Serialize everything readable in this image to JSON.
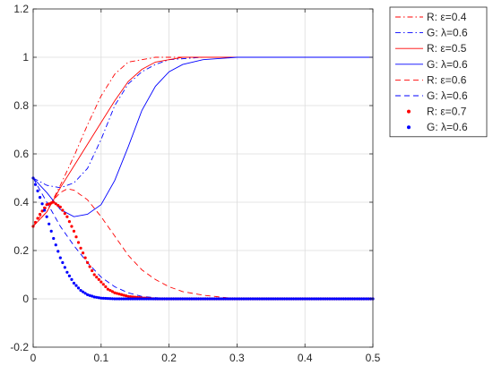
{
  "chart_data": {
    "type": "line",
    "title": "",
    "xlabel": "",
    "ylabel": "",
    "xlim": [
      0,
      0.5
    ],
    "ylim": [
      -0.2,
      1.2
    ],
    "x_ticks": [
      "0",
      "0.1",
      "0.2",
      "0.3",
      "0.4",
      "0.5"
    ],
    "y_ticks": [
      "-0.2",
      "0",
      "0.2",
      "0.4",
      "0.6",
      "0.8",
      "1",
      "1.2"
    ],
    "grid": true,
    "legend_position": "top-right outside",
    "series": [
      {
        "name": "R: ε=0.4",
        "color": "#ff0000",
        "style": "dashdot",
        "points": [
          [
            0,
            0.3
          ],
          [
            0.02,
            0.36
          ],
          [
            0.04,
            0.47
          ],
          [
            0.06,
            0.59
          ],
          [
            0.08,
            0.72
          ],
          [
            0.1,
            0.84
          ],
          [
            0.12,
            0.93
          ],
          [
            0.14,
            0.98
          ],
          [
            0.16,
            0.99
          ],
          [
            0.18,
            1.0
          ],
          [
            0.2,
            1.0
          ],
          [
            0.3,
            1.0
          ],
          [
            0.5,
            1.0
          ]
        ]
      },
      {
        "name": "G: λ=0.6",
        "color": "#0000ff",
        "style": "dashdot",
        "points": [
          [
            0,
            0.5
          ],
          [
            0.02,
            0.47
          ],
          [
            0.04,
            0.46
          ],
          [
            0.06,
            0.48
          ],
          [
            0.08,
            0.54
          ],
          [
            0.1,
            0.66
          ],
          [
            0.12,
            0.8
          ],
          [
            0.14,
            0.89
          ],
          [
            0.16,
            0.94
          ],
          [
            0.18,
            0.97
          ],
          [
            0.2,
            0.99
          ],
          [
            0.25,
            1.0
          ],
          [
            0.3,
            1.0
          ],
          [
            0.5,
            1.0
          ]
        ]
      },
      {
        "name": "R: ε=0.5",
        "color": "#ff0000",
        "style": "solid",
        "points": [
          [
            0,
            0.3
          ],
          [
            0.02,
            0.36
          ],
          [
            0.04,
            0.46
          ],
          [
            0.06,
            0.55
          ],
          [
            0.08,
            0.64
          ],
          [
            0.1,
            0.73
          ],
          [
            0.12,
            0.82
          ],
          [
            0.14,
            0.9
          ],
          [
            0.16,
            0.95
          ],
          [
            0.18,
            0.98
          ],
          [
            0.2,
            0.99
          ],
          [
            0.22,
            1.0
          ],
          [
            0.3,
            1.0
          ],
          [
            0.5,
            1.0
          ]
        ]
      },
      {
        "name": "G: λ=0.6",
        "color": "#0000ff",
        "style": "solid",
        "points": [
          [
            0,
            0.5
          ],
          [
            0.02,
            0.44
          ],
          [
            0.04,
            0.37
          ],
          [
            0.06,
            0.34
          ],
          [
            0.08,
            0.35
          ],
          [
            0.1,
            0.39
          ],
          [
            0.12,
            0.49
          ],
          [
            0.14,
            0.63
          ],
          [
            0.16,
            0.78
          ],
          [
            0.18,
            0.88
          ],
          [
            0.2,
            0.94
          ],
          [
            0.22,
            0.97
          ],
          [
            0.25,
            0.99
          ],
          [
            0.3,
            1.0
          ],
          [
            0.5,
            1.0
          ]
        ]
      },
      {
        "name": "R: ε=0.6",
        "color": "#ff0000",
        "style": "dashed",
        "points": [
          [
            0,
            0.3
          ],
          [
            0.02,
            0.38
          ],
          [
            0.04,
            0.44
          ],
          [
            0.05,
            0.455
          ],
          [
            0.06,
            0.45
          ],
          [
            0.08,
            0.41
          ],
          [
            0.1,
            0.34
          ],
          [
            0.12,
            0.26
          ],
          [
            0.14,
            0.18
          ],
          [
            0.16,
            0.12
          ],
          [
            0.18,
            0.08
          ],
          [
            0.2,
            0.05
          ],
          [
            0.22,
            0.03
          ],
          [
            0.25,
            0.015
          ],
          [
            0.3,
            0.0
          ],
          [
            0.5,
            0.0
          ]
        ]
      },
      {
        "name": "G: λ=0.6",
        "color": "#0000ff",
        "style": "dashed",
        "points": [
          [
            0,
            0.5
          ],
          [
            0.02,
            0.4
          ],
          [
            0.04,
            0.3
          ],
          [
            0.06,
            0.22
          ],
          [
            0.08,
            0.15
          ],
          [
            0.1,
            0.09
          ],
          [
            0.12,
            0.05
          ],
          [
            0.14,
            0.025
          ],
          [
            0.16,
            0.01
          ],
          [
            0.2,
            0.0
          ],
          [
            0.5,
            0.0
          ]
        ]
      },
      {
        "name": "R: ε=0.7",
        "color": "#ff0000",
        "style": "dotted",
        "points": [
          [
            0,
            0.3
          ],
          [
            0.01,
            0.35
          ],
          [
            0.02,
            0.39
          ],
          [
            0.03,
            0.4
          ],
          [
            0.04,
            0.38
          ],
          [
            0.05,
            0.34
          ],
          [
            0.06,
            0.28
          ],
          [
            0.07,
            0.21
          ],
          [
            0.08,
            0.15
          ],
          [
            0.09,
            0.1
          ],
          [
            0.1,
            0.07
          ],
          [
            0.11,
            0.04
          ],
          [
            0.12,
            0.025
          ],
          [
            0.14,
            0.01
          ],
          [
            0.16,
            0.004
          ],
          [
            0.18,
            0.0
          ],
          [
            0.5,
            0.0
          ]
        ]
      },
      {
        "name": "G: λ=0.6",
        "color": "#0000ff",
        "style": "dotted",
        "points": [
          [
            0,
            0.5
          ],
          [
            0.01,
            0.42
          ],
          [
            0.02,
            0.34
          ],
          [
            0.03,
            0.25
          ],
          [
            0.04,
            0.17
          ],
          [
            0.05,
            0.11
          ],
          [
            0.06,
            0.065
          ],
          [
            0.07,
            0.035
          ],
          [
            0.08,
            0.017
          ],
          [
            0.09,
            0.008
          ],
          [
            0.1,
            0.003
          ],
          [
            0.12,
            0.0
          ],
          [
            0.5,
            0.0
          ]
        ]
      }
    ]
  }
}
